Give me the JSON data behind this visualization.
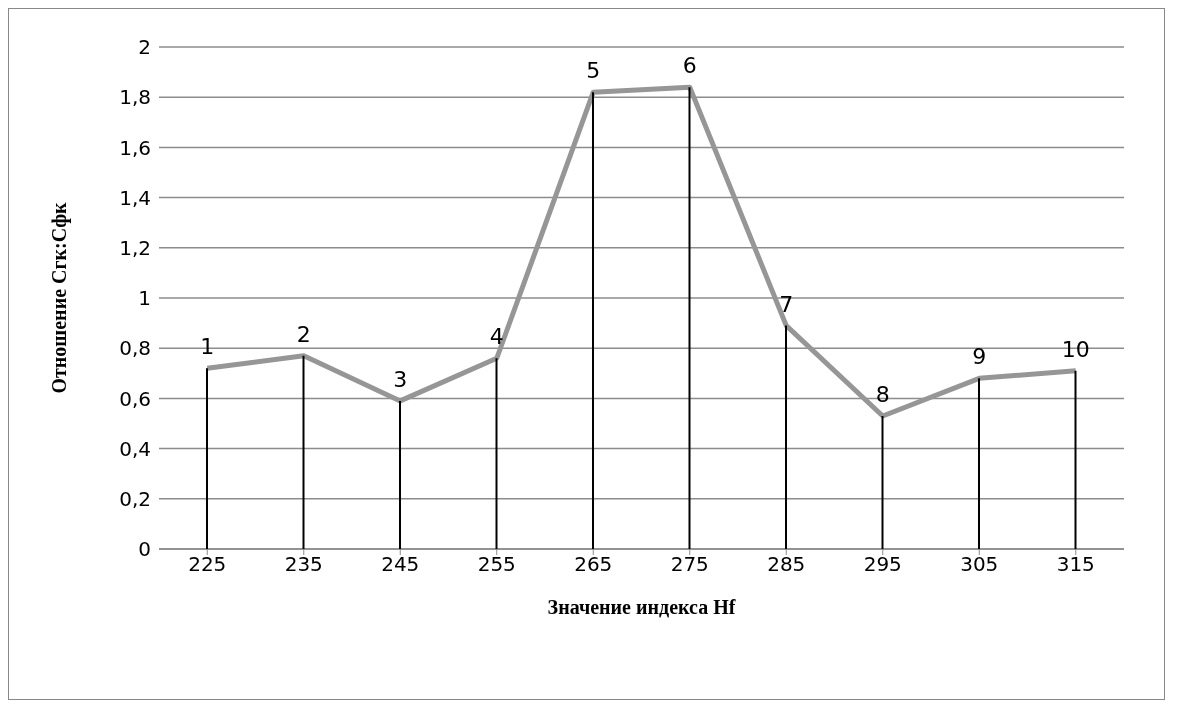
{
  "chart_data": {
    "type": "line",
    "xlabel": "Значение индекса Hf",
    "ylabel": "Отношение Сгк:Сфк",
    "categories": [
      "225",
      "235",
      "245",
      "255",
      "265",
      "275",
      "285",
      "295",
      "305",
      "315"
    ],
    "series": [
      {
        "color": "#969696",
        "values": [
          0.72,
          0.77,
          0.59,
          0.76,
          1.82,
          1.84,
          0.89,
          0.53,
          0.68,
          0.71
        ]
      },
      {
        "type": "bar",
        "color": "#000000",
        "values": [
          0.72,
          0.77,
          0.59,
          0.76,
          1.82,
          1.84,
          0.89,
          0.53,
          0.68,
          0.71
        ]
      }
    ],
    "ylim": [
      0,
      2
    ],
    "yticks": [
      0,
      {
        "value": 0.2,
        "label": "0,2"
      },
      {
        "value": 0.4,
        "label": "0,4"
      },
      {
        "value": 0.6,
        "label": "0,6"
      },
      {
        "value": 0.8,
        "label": "0,8"
      },
      1,
      {
        "value": 1.2,
        "label": "1,2"
      },
      {
        "value": 1.4,
        "label": "1,4"
      },
      {
        "value": 1.6,
        "label": "1,6"
      },
      {
        "value": 1.8,
        "label": "1,8"
      },
      2
    ],
    "annotations": [
      {
        "text": "1",
        "x": "225",
        "y": 0.72
      },
      {
        "text": "2",
        "x": "235",
        "y": 0.77
      },
      {
        "text": "3",
        "x": "245",
        "y": 0.59
      },
      {
        "text": "4",
        "x": "255",
        "y": 0.76
      },
      {
        "text": "5",
        "x": "265",
        "y": 1.82
      },
      {
        "text": "6",
        "x": "275",
        "y": 1.84
      },
      {
        "text": "7",
        "x": "285",
        "y": 0.89
      },
      {
        "text": "8",
        "x": "295",
        "y": 0.53
      },
      {
        "text": "9",
        "x": "305",
        "y": 0.68
      },
      {
        "text": "10",
        "x": "315",
        "y": 0.71
      }
    ],
    "grid": "y",
    "legend": false,
    "marker": "none",
    "line_style": "solid"
  }
}
